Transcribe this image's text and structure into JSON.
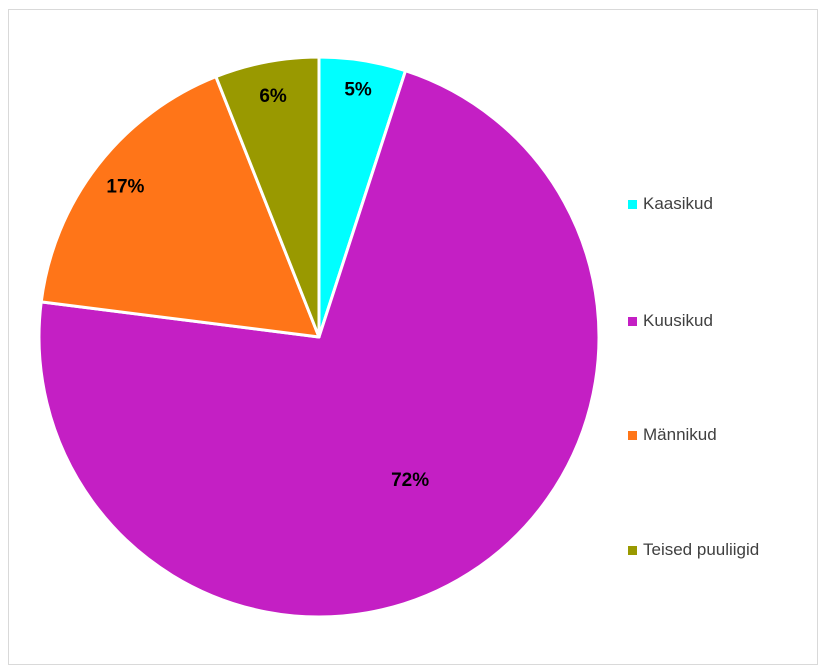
{
  "chart_data": {
    "type": "pie",
    "title": "",
    "slices": [
      {
        "label": "Kaasikud",
        "value": 5,
        "display": "5%",
        "color": "#00FFFF"
      },
      {
        "label": "Kuusikud",
        "value": 72,
        "display": "72%",
        "color": "#C41FC4"
      },
      {
        "label": "Männikud",
        "value": 17,
        "display": "17%",
        "color": "#FF7518"
      },
      {
        "label": "Teised puuliigid",
        "value": 6,
        "display": "6%",
        "color": "#999900"
      }
    ],
    "start_angle_deg": 0,
    "direction": "clockwise",
    "slice_border_color": "#FFFFFF",
    "legend_position": "right"
  }
}
